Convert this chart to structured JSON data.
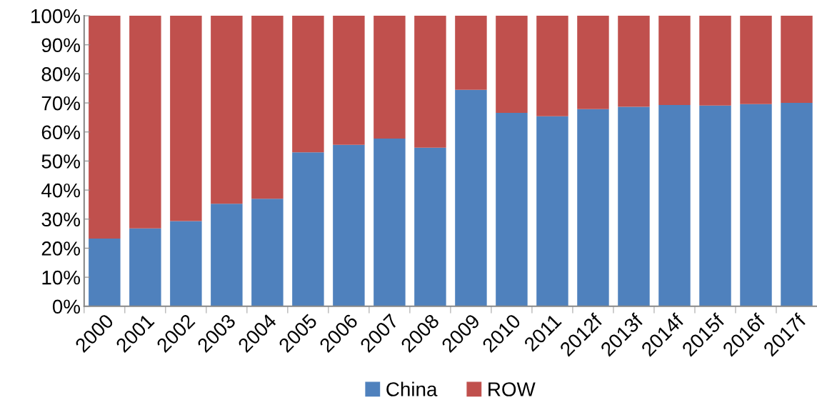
{
  "chart_data": {
    "type": "bar",
    "stacked": true,
    "categories": [
      "2000",
      "2001",
      "2002",
      "2003",
      "2004",
      "2005",
      "2006",
      "2007",
      "2008",
      "2009",
      "2010",
      "2011",
      "2012f",
      "2013f",
      "2014f",
      "2015f",
      "2016f",
      "2017f"
    ],
    "series": [
      {
        "name": "China",
        "color": "#4f81bd",
        "values": [
          23.3,
          26.8,
          29.3,
          35.3,
          37.0,
          53.0,
          55.6,
          57.7,
          54.6,
          74.5,
          66.6,
          65.4,
          67.9,
          68.7,
          69.3,
          69.1,
          69.6,
          70.0
        ]
      },
      {
        "name": "ROW",
        "color": "#c0504d",
        "values": [
          76.7,
          73.2,
          70.7,
          64.7,
          63.0,
          47.0,
          44.4,
          42.3,
          45.4,
          25.5,
          33.4,
          34.6,
          32.1,
          31.3,
          30.7,
          30.9,
          30.4,
          30.0
        ]
      }
    ],
    "ylim": [
      0,
      100
    ],
    "yticks": [
      {
        "value": 0,
        "label": "0%"
      },
      {
        "value": 10,
        "label": "10%"
      },
      {
        "value": 20,
        "label": "20%"
      },
      {
        "value": 30,
        "label": "30%"
      },
      {
        "value": 40,
        "label": "40%"
      },
      {
        "value": 50,
        "label": "50%"
      },
      {
        "value": 60,
        "label": "60%"
      },
      {
        "value": 70,
        "label": "70%"
      },
      {
        "value": 80,
        "label": "80%"
      },
      {
        "value": 90,
        "label": "90%"
      },
      {
        "value": 100,
        "label": "100%"
      }
    ],
    "grid": false,
    "legend": "bottom"
  }
}
